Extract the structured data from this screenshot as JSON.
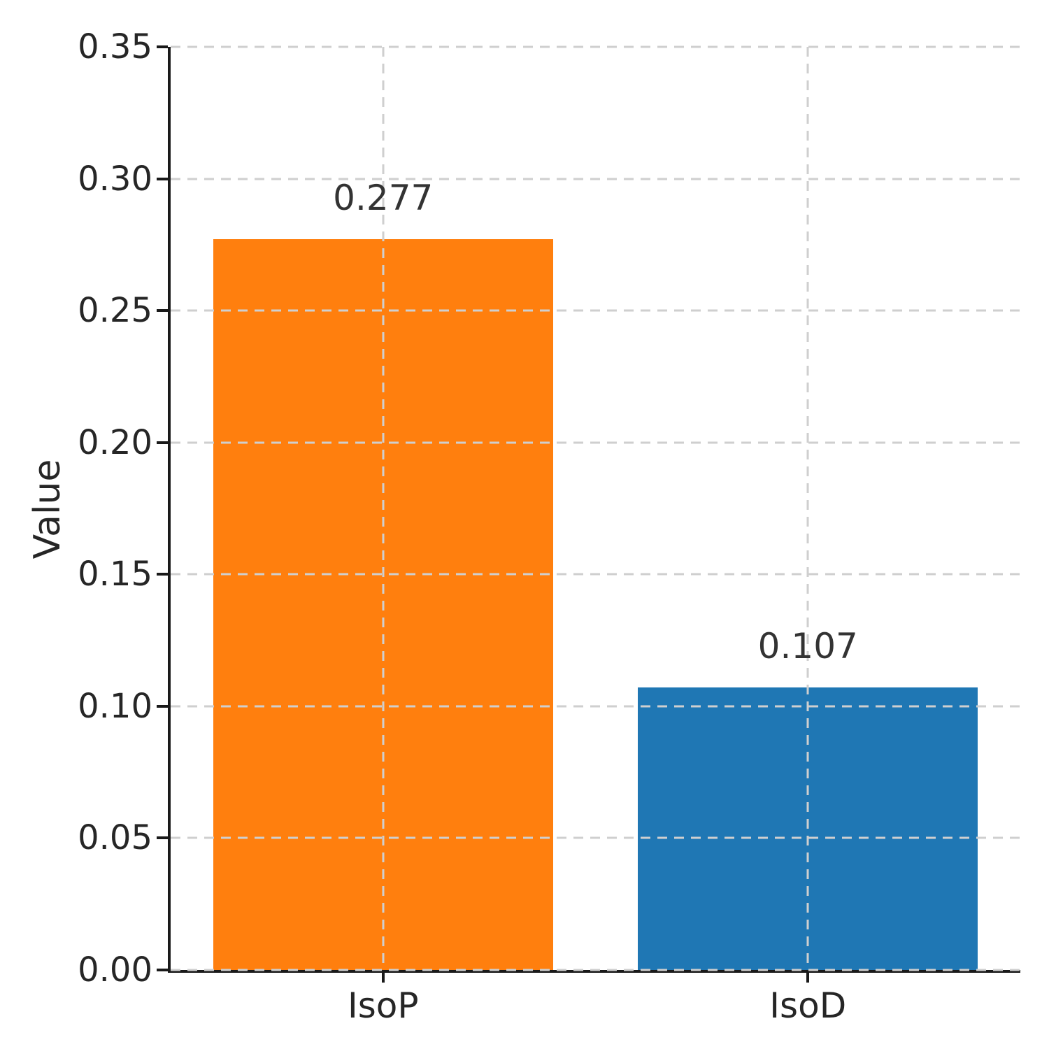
{
  "chart_data": {
    "type": "bar",
    "title": "",
    "categories": [
      "IsoP",
      "IsoD"
    ],
    "values": [
      0.277,
      0.107
    ],
    "value_labels": [
      "0.277",
      "0.107"
    ],
    "bar_colors": [
      "#ff7f0e",
      "#1f77b4"
    ],
    "xlabel": "",
    "ylabel": "Value",
    "ylim": [
      0,
      0.35
    ],
    "ytick_step": 0.05,
    "ytick_labels": [
      "0.00",
      "0.05",
      "0.10",
      "0.15",
      "0.20",
      "0.25",
      "0.30",
      "0.35"
    ],
    "grid": {
      "visible": true,
      "style": "dashed",
      "axes": "both",
      "above_bars": true
    },
    "legend_position": "none",
    "bar_width_fraction": 0.8
  },
  "style": {
    "background_color": "#ffffff",
    "grid_color": "#cfcfcf",
    "axis_color": "#1a1a1a",
    "tick_text_color": "#262626",
    "annotation_text_color": "#333333"
  }
}
